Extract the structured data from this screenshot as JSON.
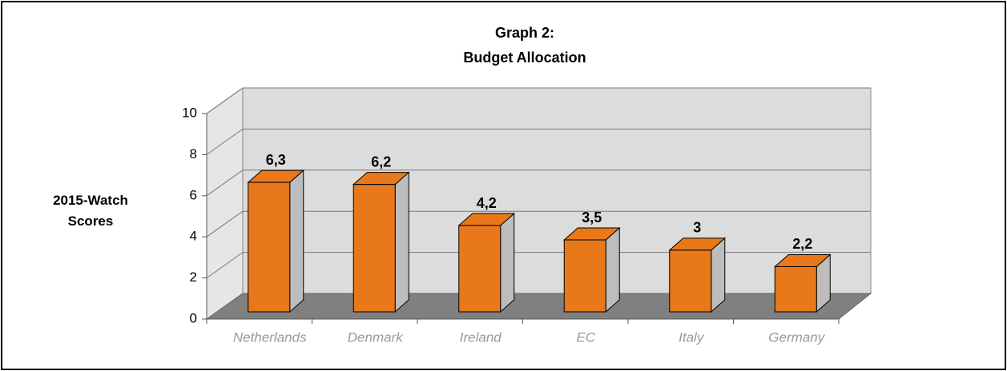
{
  "chart_data": {
    "type": "bar3d",
    "title": "Graph 2:",
    "subtitle": "Budget Allocation",
    "ylabel": "2015-Watch Scores",
    "categories": [
      "Netherlands",
      "Denmark",
      "Ireland",
      "EC",
      "Italy",
      "Germany"
    ],
    "values": [
      6.3,
      6.2,
      4.2,
      3.5,
      3,
      2.2
    ],
    "value_labels": [
      "6,3",
      "6,2",
      "4,2",
      "3,5",
      "3",
      "2,2"
    ],
    "color": "#e8781a",
    "ylim": [
      0,
      10
    ],
    "yticks": [
      0,
      2,
      4,
      6,
      8,
      10
    ],
    "grid": true
  }
}
